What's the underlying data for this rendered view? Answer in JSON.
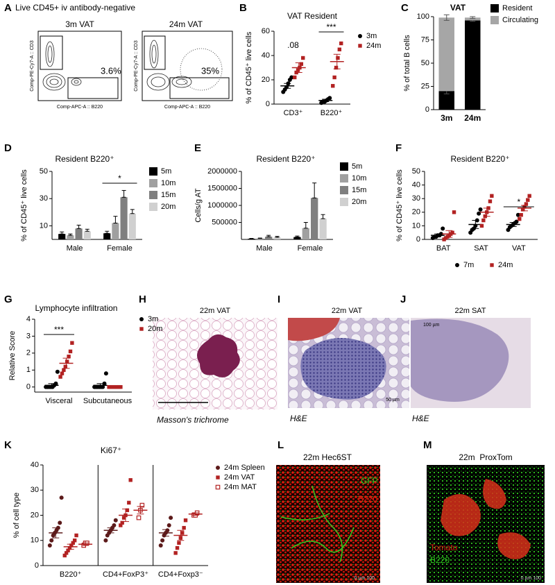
{
  "images": [
    {
      "panel": "A",
      "title": "Live CD45+ iv antibody-negative",
      "plots": [
        {
          "title": "3m VAT",
          "y_label": "Comp-PE-Cy7-A :: CD3",
          "x_label": "Comp-APC-A :: B220",
          "gate_label": "3.6%"
        },
        {
          "title": "24m VAT",
          "y_label": "Comp-PE-Cy7-A :: CD3",
          "x_label": "Comp-APC-A :: B220",
          "gate_label": "35%"
        }
      ]
    },
    {
      "panel": "H",
      "title": "22m VAT",
      "caption": "Masson's trichrome"
    },
    {
      "panel": "I",
      "title": "22m VAT",
      "caption": "H&E",
      "scale_label": "50 µm"
    },
    {
      "panel": "J",
      "title": "22m SAT",
      "caption": "H&E",
      "scale_label": "100 µm"
    },
    {
      "panel": "L",
      "title": "22m Hec6ST",
      "labels": [
        "GFP",
        "B220"
      ],
      "scale_label": "0 µm 100"
    },
    {
      "panel": "M",
      "title": "22m  ProxTom",
      "labels": [
        "Tomato",
        "B220"
      ],
      "scale_label": "0 µm 100"
    }
  ],
  "chart_data": [
    {
      "panel": "B",
      "type": "dot",
      "title": "VAT Resident",
      "y_label": "% of CD45⁺ live cells",
      "categories": [
        "CD3⁺",
        "B220⁺"
      ],
      "ylim": [
        0,
        60
      ],
      "yticks": [
        0,
        20,
        40,
        60
      ],
      "annotations": [
        ".08",
        "***"
      ],
      "legend": "upper right",
      "series": [
        {
          "name": "3m",
          "color": "#000000",
          "marker": "circle",
          "values": [
            [
              10,
              12,
              14,
              17,
              20,
              22
            ],
            [
              1,
              2,
              2,
              3,
              4,
              5
            ]
          ],
          "means": [
            15,
            3
          ],
          "errors": [
            2,
            1
          ]
        },
        {
          "name": "24m",
          "color": "#b22222",
          "marker": "square",
          "values": [
            [
              22,
              26,
              28,
              30,
              33,
              38
            ],
            [
              15,
              22,
              30,
              38,
              45,
              50
            ]
          ],
          "means": [
            30,
            35
          ],
          "errors": [
            4,
            6
          ]
        }
      ]
    },
    {
      "panel": "C",
      "type": "stacked_bar",
      "title": "VAT",
      "y_label": "% of total B cells",
      "categories": [
        "3m",
        "24m"
      ],
      "ylim": [
        0,
        100
      ],
      "yticks": [
        0,
        25,
        50,
        75,
        100
      ],
      "legend": "upper right",
      "series": [
        {
          "name": "Resident",
          "color": "#000000",
          "values": [
            20,
            96
          ],
          "errors": [
            3,
            1
          ]
        },
        {
          "name": "Circulating",
          "color": "#a6a6a6",
          "values": [
            79,
            3
          ],
          "errors": [
            3,
            1
          ]
        }
      ]
    },
    {
      "panel": "D",
      "type": "bar",
      "title": "Resident B220⁺",
      "y_label": "% of CD45⁺ live cells",
      "categories": [
        "Male",
        "Female"
      ],
      "ylim": [
        0,
        50
      ],
      "yticks": [
        10,
        30,
        50
      ],
      "annotations": [
        "*"
      ],
      "legend": "right",
      "series": [
        {
          "name": "5m",
          "color": "#000000",
          "values": [
            4,
            4.5
          ],
          "errors": [
            1.5,
            1.5
          ]
        },
        {
          "name": "10m",
          "color": "#a0a0a0",
          "values": [
            3,
            12
          ],
          "errors": [
            1,
            5
          ]
        },
        {
          "name": "15m",
          "color": "#7f7f7f",
          "values": [
            8,
            31
          ],
          "errors": [
            2.5,
            5
          ]
        },
        {
          "name": "20m",
          "color": "#d0d0d0",
          "values": [
            6,
            19
          ],
          "errors": [
            1.5,
            3
          ]
        }
      ]
    },
    {
      "panel": "E",
      "type": "bar",
      "title": "Resident B220⁺",
      "y_label": "Cells/g AT",
      "categories": [
        "Male",
        "Female"
      ],
      "ylim": [
        0,
        2000000
      ],
      "yticks": [
        500000,
        1000000,
        1500000,
        2000000
      ],
      "legend": "right",
      "series": [
        {
          "name": "5m",
          "color": "#000000",
          "values": [
            20000,
            70000
          ],
          "errors": [
            10000,
            30000
          ]
        },
        {
          "name": "10m",
          "color": "#a0a0a0",
          "values": [
            30000,
            330000
          ],
          "errors": [
            10000,
            170000
          ]
        },
        {
          "name": "15m",
          "color": "#7f7f7f",
          "values": [
            80000,
            1220000
          ],
          "errors": [
            40000,
            440000
          ]
        },
        {
          "name": "20m",
          "color": "#d0d0d0",
          "values": [
            60000,
            610000
          ],
          "errors": [
            30000,
            120000
          ]
        }
      ]
    },
    {
      "panel": "F",
      "type": "dot",
      "title": "Resident B220⁺",
      "y_label": "% of CD45⁺ live cells",
      "categories": [
        "BAT",
        "SAT",
        "VAT"
      ],
      "ylim": [
        0,
        50
      ],
      "yticks": [
        0,
        10,
        20,
        30,
        40,
        50
      ],
      "annotations": [
        "*"
      ],
      "legend": "lower center",
      "series": [
        {
          "name": "7m",
          "color": "#000000",
          "marker": "circle",
          "values": [
            [
              1,
              2,
              2,
              3,
              3,
              4,
              8
            ],
            [
              5,
              7,
              8,
              10,
              14,
              19,
              22
            ],
            [
              7,
              9,
              10,
              11,
              12,
              13,
              18
            ]
          ],
          "means": [
            3,
            11,
            11
          ],
          "errors": [
            1,
            3,
            1.5
          ]
        },
        {
          "name": "24m",
          "color": "#b22222",
          "marker": "square",
          "values": [
            [
              0,
              1,
              2,
              3,
              4,
              5,
              20
            ],
            [
              10,
              14,
              17,
              20,
              23,
              28,
              32
            ],
            [
              15,
              18,
              22,
              24,
              26,
              29,
              32
            ]
          ],
          "means": [
            4,
            20,
            23
          ],
          "errors": [
            2.5,
            3,
            2
          ]
        }
      ]
    },
    {
      "panel": "G",
      "type": "dot",
      "title": "Lymphocyte infiltration",
      "y_label": "Relative Score",
      "categories": [
        "Visceral",
        "Subcutaneous"
      ],
      "ylim": [
        -0.3,
        4
      ],
      "yticks": [
        0,
        1,
        2,
        3,
        4
      ],
      "annotations": [
        "***"
      ],
      "legend": "upper right",
      "series": [
        {
          "name": "3m",
          "color": "#000000",
          "marker": "circle",
          "values": [
            [
              0,
              0,
              0,
              0,
              0,
              0.1,
              0.2,
              0.9
            ],
            [
              0,
              0,
              0,
              0,
              0,
              0,
              0.2,
              0.8
            ]
          ],
          "means": [
            0.1,
            0.1
          ],
          "errors": [
            0.1,
            0.1
          ]
        },
        {
          "name": "20m",
          "color": "#b22222",
          "marker": "square",
          "values": [
            [
              0.6,
              0.8,
              1,
              1.2,
              1.5,
              1.8,
              2.1,
              2.6
            ],
            [
              0,
              0,
              0,
              0,
              0,
              0,
              0,
              0
            ]
          ],
          "means": [
            1.4,
            0
          ],
          "errors": [
            0.3,
            0
          ]
        }
      ]
    },
    {
      "panel": "K",
      "type": "dot",
      "title": "Ki67⁺",
      "y_label": "% of cell type",
      "categories": [
        "B220⁺",
        "CD4+FoxP3⁺",
        "CD4+Foxp3⁻"
      ],
      "ylim": [
        0,
        40
      ],
      "yticks": [
        0,
        10,
        20,
        30,
        40
      ],
      "separators": true,
      "legend": "upper right",
      "series": [
        {
          "name": "24m Spleen",
          "color": "#5c1a1a",
          "marker": "circle",
          "values": [
            [
              8,
              10,
              12,
              13,
              14,
              15,
              17,
              27
            ],
            [
              10,
              12,
              13,
              14,
              15,
              16,
              18
            ],
            [
              8,
              10,
              12,
              13,
              14,
              16,
              19
            ]
          ],
          "means": [
            13,
            14,
            13
          ],
          "errors": [
            2,
            1,
            1.3
          ]
        },
        {
          "name": "24m VAT",
          "color": "#b22222",
          "marker": "square",
          "values": [
            [
              4,
              5,
              6,
              7,
              8,
              9,
              10,
              12
            ],
            [
              16,
              17,
              19,
              20,
              22,
              25,
              34
            ],
            [
              5,
              7,
              9,
              11,
              13,
              15,
              18
            ]
          ],
          "means": [
            7.5,
            20,
            12
          ],
          "errors": [
            1,
            2.5,
            2
          ]
        },
        {
          "name": "24m MAT",
          "color": "#b22222",
          "marker": "open-square",
          "values": [
            [
              8,
              9,
              9
            ],
            [
              19,
              22,
              24
            ],
            [
              20,
              20,
              21
            ]
          ],
          "means": [
            8.5,
            22,
            20.5
          ],
          "errors": [
            0.5,
            1.5,
            0.5
          ]
        }
      ]
    }
  ]
}
